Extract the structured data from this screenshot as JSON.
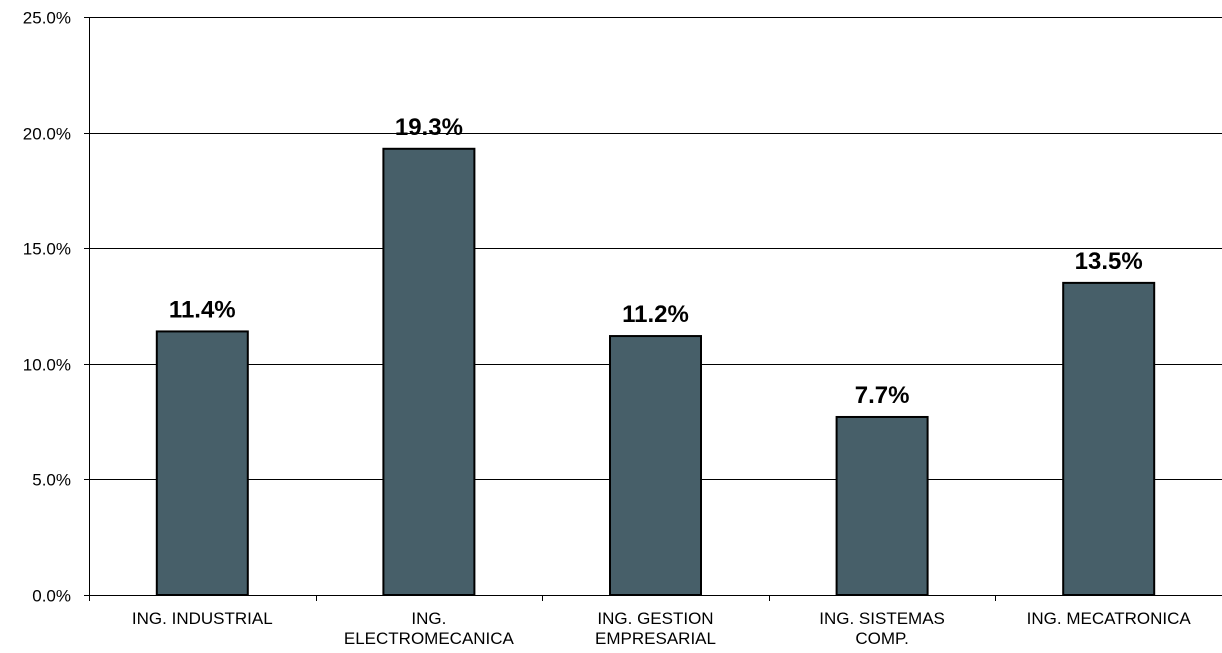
{
  "chart_data": {
    "type": "bar",
    "categories": [
      [
        "ING. INDUSTRIAL"
      ],
      [
        "ING.",
        "ELECTROMECANICA"
      ],
      [
        "ING. GESTION",
        "EMPRESARIAL"
      ],
      [
        "ING. SISTEMAS",
        "COMP."
      ],
      [
        "ING. MECATRONICA"
      ]
    ],
    "values": [
      11.4,
      19.3,
      11.2,
      7.7,
      13.5
    ],
    "data_labels": [
      "11.4%",
      "19.3%",
      "11.2%",
      "7.7%",
      "13.5%"
    ],
    "yticks": [
      0,
      5,
      10,
      15,
      20,
      25
    ],
    "ytick_labels": [
      "0.0%",
      "5.0%",
      "10.0%",
      "15.0%",
      "20.0%",
      "25.0%"
    ],
    "ylim": [
      0,
      25
    ],
    "grid": true,
    "bar_color": "#475f69",
    "title": "",
    "xlabel": "",
    "ylabel": ""
  }
}
